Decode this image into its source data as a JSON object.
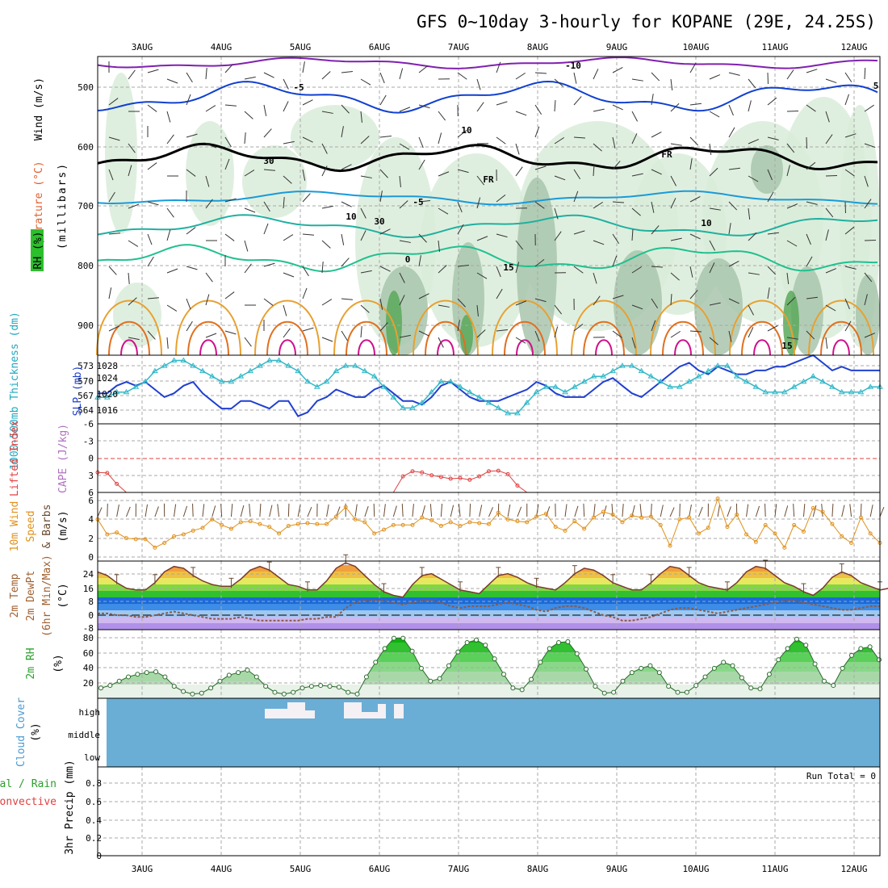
{
  "title": "GFS 0~10day 3-hourly for KOPANE (29E, 24.25S)",
  "dates": [
    "3AUG",
    "4AUG",
    "5AUG",
    "6AUG",
    "7AUG",
    "8AUG",
    "9AUG",
    "10AUG",
    "11AUG",
    "12AUG"
  ],
  "colors": {
    "temp_hot": "#e07020",
    "temp_warm": "#e8a030",
    "temp_cool": "#20b0a0",
    "temp_cold": "#1040d0",
    "temp_vcold": "#8020b0",
    "freezing": "#000000",
    "rh_light": "#d9ecd9",
    "rh_mid": "#a9c6ad",
    "rh_dark": "#5aa85a",
    "slp": "#2040d0",
    "thickness": "#30b8c8",
    "lifted": "#e04040",
    "wind": "#e0901a",
    "barb": "#6a4a30",
    "cloud_bg": "#6aaed6",
    "cloud": "#f4f0f4"
  },
  "panels": {
    "upper": {
      "label_wind": "Wind (m/s)",
      "label_temp": "Temperature (°C)",
      "label_rh": "RH (%)",
      "label_pressure": "(millibars)",
      "yticks": [
        "500",
        "600",
        "700",
        "800",
        "900"
      ],
      "contour_labels": [
        "-10",
        "-5",
        "5",
        "10",
        "10",
        "15",
        "15",
        "-5",
        "0",
        "10",
        "30",
        "30",
        "FR",
        "FR"
      ]
    },
    "slp": {
      "label_thick": "1000-500mb Thickness (dm)",
      "label_slp": "SLP (mb)",
      "yticks_left": [
        "573",
        "570",
        "567",
        "564"
      ],
      "yticks_right": [
        "1028",
        "1024",
        "1020",
        "1016"
      ]
    },
    "cape": {
      "label_li": "Lifted Index",
      "label_cape": "CAPE (J/kg)",
      "yticks": [
        "-6",
        "-3",
        "0",
        "3",
        "6"
      ]
    },
    "wind10": {
      "label_a": "10m Wind",
      "label_b": "Speed",
      "label_c": "& Barbs",
      "label_units": "(m/s)",
      "yticks": [
        "6",
        "4",
        "2",
        "0"
      ]
    },
    "temp2m": {
      "label_a": "2m Temp",
      "label_b": "2m DewPt",
      "label_c": "(6hr Min/Max)",
      "label_units": "(°C)",
      "yticks": [
        "24",
        "16",
        "8",
        "0",
        "-8"
      ]
    },
    "rh2m": {
      "label": "2m RH",
      "label_units": "(%)",
      "yticks": [
        "80",
        "60",
        "40",
        "20"
      ]
    },
    "cloud": {
      "label": "Cloud Cover",
      "label_units": "(%)",
      "levels": [
        "high",
        "middle",
        "low"
      ]
    },
    "precip": {
      "label_a": "Total / Rain",
      "label_b": "Convective",
      "label_c": "3hr Precip (mm)",
      "run_total": "Run Total = 0",
      "yticks": [
        "0.8",
        "0.6",
        "0.4",
        "0.2",
        "0"
      ]
    }
  },
  "chart_data": [
    {
      "type": "line",
      "name": "SLP (mb)",
      "ylim": [
        1012,
        1030
      ],
      "values": [
        1020,
        1020,
        1022,
        1023,
        1022,
        1023,
        1021,
        1019,
        1020,
        1022,
        1023,
        1020,
        1018,
        1016,
        1016,
        1018,
        1018,
        1017,
        1016,
        1018,
        1018,
        1014,
        1015,
        1018,
        1019,
        1021,
        1020,
        1019,
        1019,
        1021,
        1022,
        1020,
        1018,
        1018,
        1017,
        1019,
        1022,
        1023,
        1021,
        1019,
        1018,
        1018,
        1018,
        1019,
        1020,
        1021,
        1023,
        1022,
        1020,
        1019,
        1019,
        1019,
        1021,
        1023,
        1024,
        1022,
        1020,
        1019,
        1021,
        1023,
        1025,
        1027,
        1028,
        1026,
        1025,
        1027,
        1026,
        1025,
        1025,
        1026,
        1026,
        1027,
        1027,
        1028,
        1029,
        1030,
        1028,
        1026,
        1027,
        1026,
        1026,
        1026,
        1026
      ],
      "note": ""
    },
    {
      "type": "line",
      "name": "1000-500mb Thickness (dm)",
      "ylim": [
        562,
        575
      ],
      "values": [
        567,
        567,
        568,
        568,
        569,
        570,
        572,
        573,
        574,
        574,
        573,
        572,
        571,
        570,
        570,
        571,
        572,
        573,
        574,
        574,
        573,
        572,
        570,
        569,
        570,
        572,
        573,
        573,
        572,
        571,
        569,
        567,
        565,
        565,
        566,
        568,
        570,
        570,
        569,
        568,
        567,
        566,
        565,
        564,
        564,
        566,
        568,
        569,
        569,
        568,
        569,
        570,
        571,
        571,
        572,
        573,
        573,
        572,
        571,
        570,
        569,
        569,
        570,
        571,
        572,
        573,
        573,
        571,
        570,
        569,
        568,
        568,
        568,
        569,
        570,
        571,
        570,
        569,
        568,
        568,
        568,
        569,
        569
      ],
      "note": ""
    },
    {
      "type": "line",
      "name": "Lifted Index",
      "ylim": [
        -6,
        6
      ],
      "values": [
        2.5,
        2.6,
        4.5,
        6.0,
        6.0,
        6.0,
        6.0,
        6.0,
        6.0,
        6.0,
        6.0,
        6.0,
        6.0,
        6.0,
        6.0,
        6.0,
        6.0,
        6.0,
        6.0,
        6.0,
        6.0,
        6.0,
        6.0,
        6.0,
        6.0,
        6.0,
        6.0,
        6.0,
        6.0,
        6.0,
        6.0,
        6.0,
        3.2,
        2.3,
        2.5,
        3.0,
        3.3,
        3.6,
        3.5,
        3.8,
        3.2,
        2.3,
        2.2,
        2.8,
        4.8,
        6.0,
        6.0,
        6.0,
        6.0,
        6.0,
        6.0,
        6.0,
        6.0,
        6.0,
        6.0,
        6.0,
        6.0,
        6.0,
        6.0,
        6.0,
        6.0,
        6.0,
        6.0,
        6.0,
        6.0,
        6.0,
        6.0,
        6.0,
        6.0,
        6.0,
        6.0,
        6.0,
        6.0,
        6.0,
        6.0,
        6.0,
        6.0,
        6.0,
        6.0,
        6.0,
        6.0,
        6.0,
        6.0
      ],
      "note": ""
    },
    {
      "type": "line",
      "name": "10m Wind Speed (m/s)",
      "ylim": [
        0,
        7
      ],
      "values": [
        4.0,
        2.4,
        2.6,
        2.0,
        1.9,
        1.9,
        1.0,
        1.5,
        2.2,
        2.4,
        2.8,
        3.1,
        4.0,
        3.4,
        3.0,
        3.7,
        3.8,
        3.5,
        3.2,
        2.5,
        3.3,
        3.5,
        3.6,
        3.5,
        3.5,
        4.3,
        5.3,
        4.0,
        3.7,
        2.5,
        2.9,
        3.4,
        3.4,
        3.4,
        4.2,
        3.9,
        3.3,
        3.7,
        3.3,
        3.7,
        3.6,
        3.5,
        4.7,
        4.0,
        3.8,
        3.7,
        4.3,
        4.6,
        3.2,
        2.8,
        3.8,
        3.0,
        4.2,
        4.8,
        4.5,
        3.7,
        4.4,
        4.2,
        4.3,
        3.4,
        1.2,
        4.0,
        4.2,
        2.5,
        3.1,
        6.2,
        3.2,
        4.5,
        2.4,
        1.6,
        3.4,
        2.5,
        1.0,
        3.4,
        2.7,
        5.2,
        4.8,
        3.5,
        2.2,
        1.5,
        4.2,
        2.5,
        1.5
      ],
      "note": ""
    },
    {
      "type": "area",
      "name": "2m Temp (°C)",
      "ylim": [
        -8,
        30
      ],
      "values": [
        24,
        22,
        18,
        15,
        14,
        14,
        18,
        24,
        27,
        26,
        22,
        19,
        17,
        16,
        16,
        20,
        25,
        27,
        25,
        21,
        17,
        16,
        14,
        14,
        19,
        26,
        29,
        27,
        22,
        17,
        13,
        11,
        10,
        17,
        22,
        23,
        20,
        17,
        14,
        13,
        12,
        17,
        22,
        23,
        21,
        18,
        16,
        15,
        14,
        18,
        23,
        26,
        25,
        22,
        18,
        16,
        14,
        14,
        18,
        23,
        27,
        26,
        22,
        18,
        16,
        15,
        14,
        18,
        24,
        27,
        26,
        22,
        18,
        16,
        13,
        11,
        15,
        21,
        24,
        22,
        18,
        16,
        14,
        15
      ],
      "note": ""
    },
    {
      "type": "line",
      "name": "2m DewPt (°C)",
      "ylim": [
        -8,
        30
      ],
      "values": [
        1,
        1,
        0,
        0,
        -1,
        -1,
        0,
        1,
        2,
        1,
        0,
        -1,
        -2,
        -2,
        -2,
        -1,
        -2,
        -3,
        -3,
        -3,
        -3,
        -3,
        -2,
        -2,
        -1,
        -1,
        4,
        7,
        8,
        8,
        8,
        7,
        6,
        7,
        8,
        8,
        7,
        5,
        4,
        5,
        5,
        5,
        6,
        7,
        6,
        5,
        3,
        2,
        4,
        5,
        5,
        4,
        2,
        0,
        -1,
        -3,
        -3,
        -2,
        -1,
        1,
        3,
        4,
        4,
        3,
        2,
        1,
        2,
        3,
        4,
        5,
        6,
        7,
        8,
        8,
        7,
        6,
        5,
        4,
        3,
        3,
        4,
        5,
        5
      ],
      "note": ""
    },
    {
      "type": "area",
      "name": "2m RH (%)",
      "ylim": [
        10,
        90
      ],
      "values": [
        22,
        25,
        30,
        35,
        38,
        40,
        41,
        35,
        24,
        18,
        15,
        16,
        22,
        30,
        37,
        40,
        43,
        35,
        24,
        17,
        15,
        17,
        22,
        24,
        25,
        24,
        23,
        17,
        15,
        35,
        52,
        68,
        80,
        80,
        65,
        45,
        30,
        33,
        48,
        64,
        75,
        78,
        72,
        56,
        38,
        22,
        20,
        32,
        52,
        68,
        75,
        76,
        62,
        44,
        24,
        16,
        17,
        30,
        40,
        45,
        48,
        40,
        24,
        17,
        17,
        25,
        35,
        45,
        52,
        48,
        34,
        22,
        21,
        38,
        55,
        68,
        79,
        72,
        50,
        30,
        25,
        45,
        60,
        68,
        70,
        55
      ],
      "note": ""
    },
    {
      "type": "bar",
      "name": "3hr Precip (mm)",
      "ylim": [
        0,
        0.9
      ],
      "values": [],
      "note": ""
    }
  ]
}
